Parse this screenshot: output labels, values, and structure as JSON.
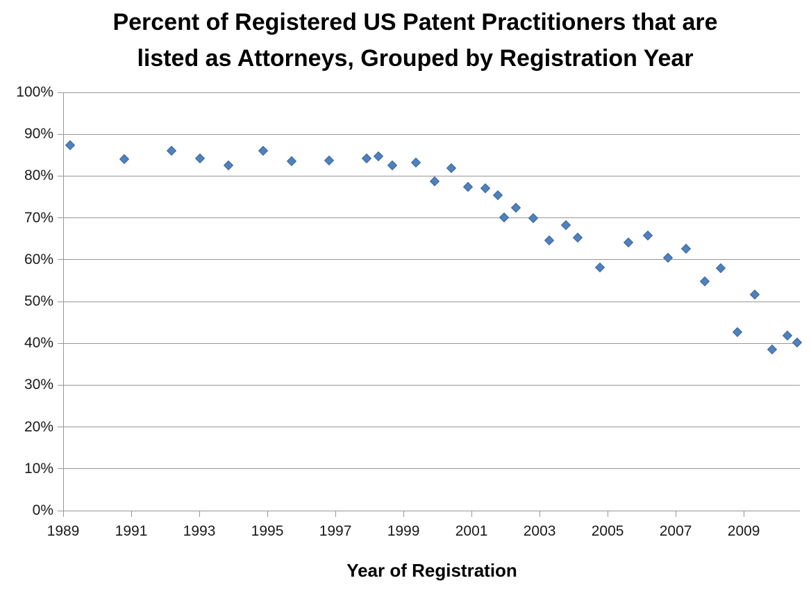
{
  "chart_data": {
    "type": "scatter",
    "title_line1": "Percent of Registered US Patent Practitioners that are",
    "title_line2": "listed as Attorneys, Grouped by Registration Year",
    "xlabel": "Year of Registration",
    "ylabel": "",
    "xlim": [
      1989,
      2010.65
    ],
    "ylim": [
      0,
      100
    ],
    "xticks": [
      1989,
      1991,
      1993,
      1995,
      1997,
      1999,
      2001,
      2003,
      2005,
      2007,
      2009
    ],
    "yticks": [
      0,
      10,
      20,
      30,
      40,
      50,
      60,
      70,
      80,
      90,
      100
    ],
    "ytick_suffix": "%",
    "grid": "horizontal-only",
    "legend": "none",
    "marker": "diamond",
    "marker_color": "#4F81BD",
    "gridline_color": "#969696",
    "series": [
      {
        "name": "Percent listed as attorneys",
        "points": [
          [
            1989.2,
            87.4
          ],
          [
            1990.8,
            84.0
          ],
          [
            1992.19,
            86.1
          ],
          [
            1993.02,
            84.2
          ],
          [
            1993.86,
            82.6
          ],
          [
            1994.87,
            86.0
          ],
          [
            1995.71,
            83.5
          ],
          [
            1996.82,
            83.8
          ],
          [
            1997.92,
            84.2
          ],
          [
            1998.27,
            84.8
          ],
          [
            1998.67,
            82.6
          ],
          [
            1999.36,
            83.2
          ],
          [
            1999.91,
            78.8
          ],
          [
            2000.41,
            81.9
          ],
          [
            2000.9,
            77.4
          ],
          [
            2001.4,
            77.1
          ],
          [
            2001.77,
            75.4
          ],
          [
            2001.96,
            70.1
          ],
          [
            2002.31,
            72.4
          ],
          [
            2002.82,
            70.0
          ],
          [
            2003.29,
            64.7
          ],
          [
            2003.78,
            68.2
          ],
          [
            2004.12,
            65.3
          ],
          [
            2004.77,
            58.1
          ],
          [
            2005.61,
            64.2
          ],
          [
            2006.19,
            65.8
          ],
          [
            2006.77,
            60.5
          ],
          [
            2007.31,
            62.7
          ],
          [
            2007.86,
            54.9
          ],
          [
            2008.33,
            58.0
          ],
          [
            2008.82,
            42.7
          ],
          [
            2009.32,
            51.7
          ],
          [
            2009.83,
            38.5
          ],
          [
            2010.28,
            41.9
          ],
          [
            2010.56,
            40.2
          ]
        ]
      }
    ]
  }
}
